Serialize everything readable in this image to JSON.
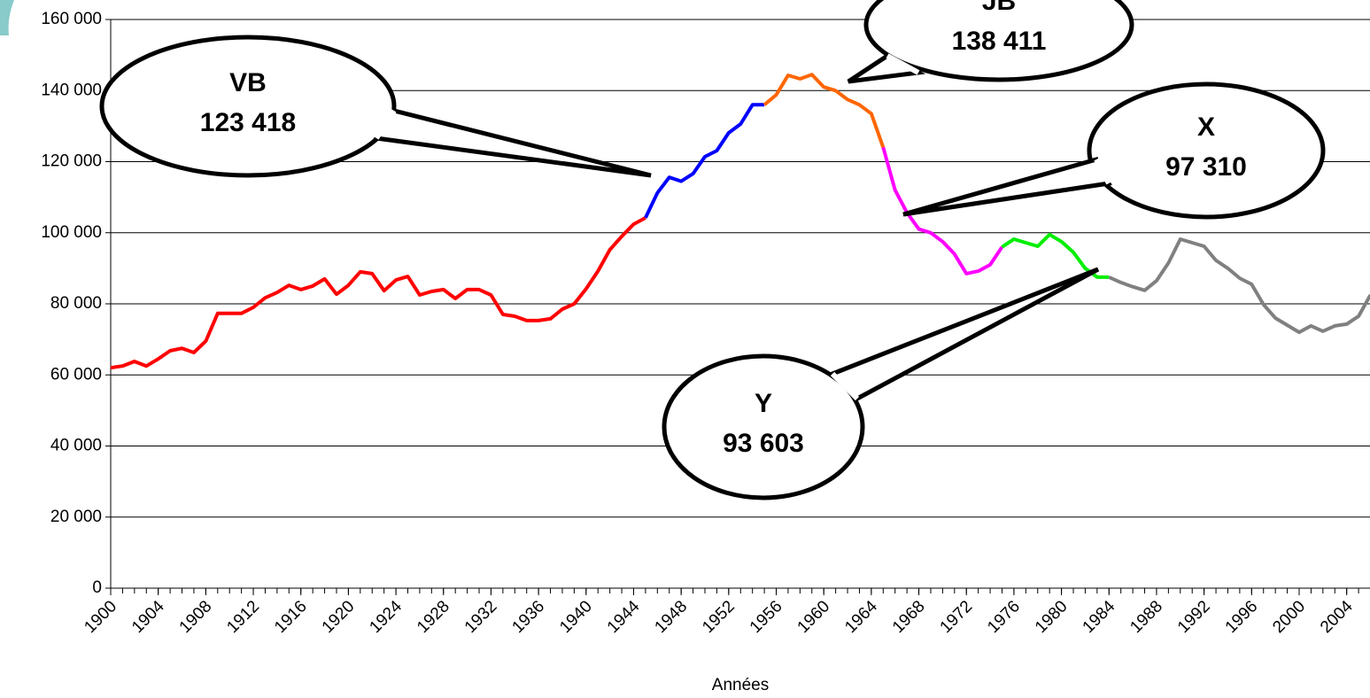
{
  "chart_data": {
    "type": "line",
    "x_label": "Années",
    "x": [
      1900,
      1901,
      1902,
      1903,
      1904,
      1905,
      1906,
      1907,
      1908,
      1909,
      1910,
      1911,
      1912,
      1913,
      1914,
      1915,
      1916,
      1917,
      1918,
      1919,
      1920,
      1921,
      1922,
      1923,
      1924,
      1925,
      1926,
      1927,
      1928,
      1929,
      1930,
      1931,
      1932,
      1933,
      1934,
      1935,
      1936,
      1937,
      1938,
      1939,
      1940,
      1941,
      1942,
      1943,
      1944,
      1945,
      1946,
      1947,
      1948,
      1949,
      1950,
      1951,
      1952,
      1953,
      1954,
      1955,
      1956,
      1957,
      1958,
      1959,
      1960,
      1961,
      1962,
      1963,
      1964,
      1965,
      1966,
      1967,
      1968,
      1969,
      1970,
      1971,
      1972,
      1973,
      1974,
      1975,
      1976,
      1977,
      1978,
      1979,
      1980,
      1981,
      1982,
      1983,
      1984,
      1985,
      1986,
      1987,
      1988,
      1989,
      1990,
      1991,
      1992,
      1993,
      1994,
      1995,
      1996,
      1997,
      1998,
      1999,
      2000,
      2001,
      2002,
      2003,
      2004,
      2005,
      2006
    ],
    "values": [
      62000,
      62500,
      63800,
      62500,
      64500,
      66800,
      67500,
      66300,
      69500,
      77300,
      77300,
      77300,
      79000,
      81700,
      83200,
      85200,
      84000,
      85000,
      87000,
      82700,
      85200,
      89000,
      88500,
      83700,
      86700,
      87700,
      82500,
      83500,
      84000,
      81500,
      84000,
      84000,
      82500,
      77000,
      76500,
      75300,
      75300,
      75800,
      78500,
      80000,
      84200,
      89200,
      95200,
      99000,
      102400,
      104200,
      111200,
      115600,
      114500,
      116600,
      121400,
      123100,
      128100,
      130600,
      136000,
      136000,
      138800,
      144300,
      143300,
      144500,
      141000,
      140000,
      137500,
      136000,
      133500,
      124000,
      112000,
      105700,
      101000,
      100000,
      97500,
      94000,
      88500,
      89200,
      91000,
      96000,
      98200,
      97200,
      96200,
      99500,
      97500,
      94500,
      90000,
      87500,
      87500,
      86000,
      84800,
      83800,
      86500,
      91500,
      98200,
      97200,
      96200,
      92200,
      90000,
      87200,
      85500,
      79800,
      76000,
      74000,
      72000,
      73800,
      72300,
      73800,
      74300,
      76500,
      82500
    ],
    "segments": [
      {
        "from": 1900,
        "color": "#ff0000"
      },
      {
        "from": 1945,
        "color": "#0000ff"
      },
      {
        "from": 1955,
        "color": "#ff6600"
      },
      {
        "from": 1965,
        "color": "#ff00ff"
      },
      {
        "from": 1975,
        "color": "#00ee00"
      },
      {
        "from": 1984,
        "color": "#808080"
      }
    ],
    "xlim": [
      1900,
      2006
    ],
    "xticks": [
      1900,
      1904,
      1908,
      1912,
      1916,
      1920,
      1924,
      1928,
      1932,
      1936,
      1940,
      1944,
      1948,
      1952,
      1956,
      1960,
      1964,
      1968,
      1972,
      1976,
      1980,
      1984,
      1988,
      1992,
      1996,
      2000,
      2004
    ],
    "ylim": [
      0,
      160000
    ],
    "yticks": [
      {
        "value": 0,
        "label": "0"
      },
      {
        "value": 20000,
        "label": "20 000"
      },
      {
        "value": 40000,
        "label": "40 000"
      },
      {
        "value": 60000,
        "label": "60 000"
      },
      {
        "value": 80000,
        "label": "80 000"
      },
      {
        "value": 100000,
        "label": "100 000"
      },
      {
        "value": 120000,
        "label": "120 000"
      },
      {
        "value": 140000,
        "label": "140 000"
      },
      {
        "value": 160000,
        "label": "160 000"
      }
    ],
    "grid": true,
    "annotations": [
      {
        "text": "VB",
        "value": 123418,
        "value_label": "123 418"
      },
      {
        "text": "JB",
        "value": 138411,
        "value_label": "138 411"
      },
      {
        "text": "X",
        "value": 97310,
        "value_label": "97 310"
      },
      {
        "text": "Y",
        "value": 93603,
        "value_label": "93 603"
      }
    ]
  }
}
